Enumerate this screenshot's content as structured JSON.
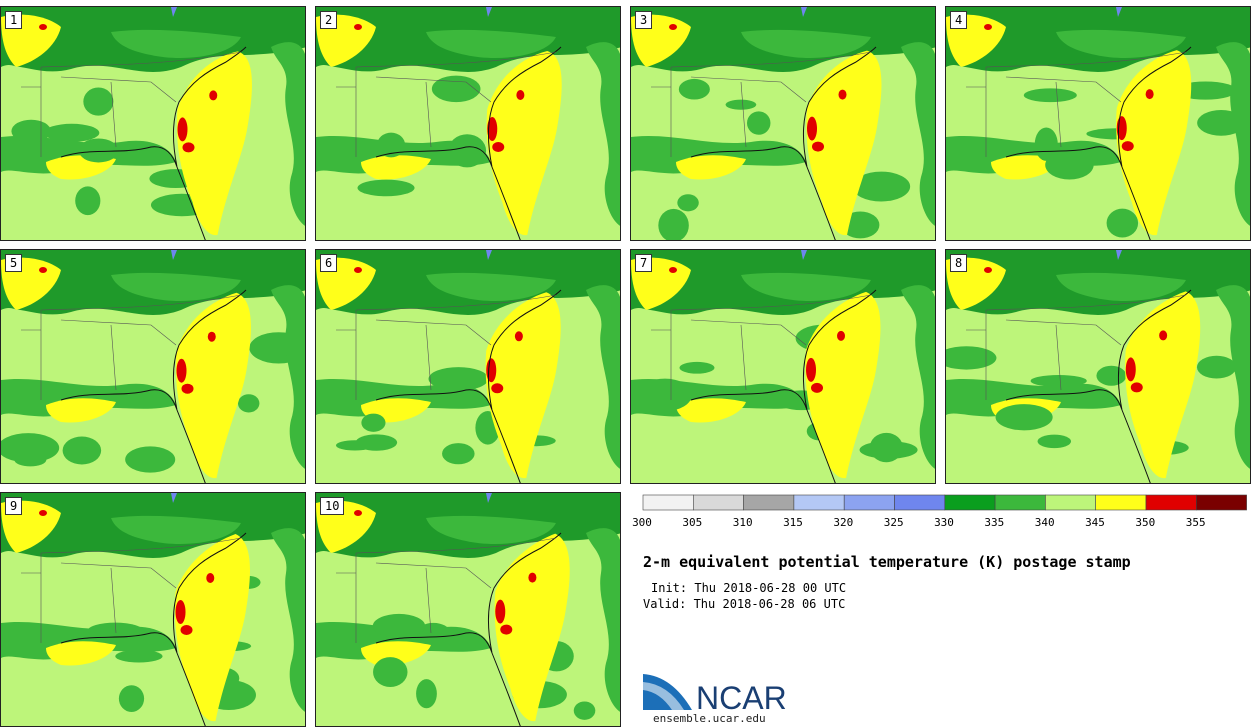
{
  "title": "2-m equivalent potential temperature (K) postage stamp",
  "init": "Init: Thu 2018-06-28 00 UTC",
  "valid": "Valid: Thu 2018-06-28 06 UTC",
  "logo_text": "NCAR",
  "url": "ensemble.ucar.edu",
  "panels": [
    "1",
    "2",
    "3",
    "4",
    "5",
    "6",
    "7",
    "8",
    "9",
    "10"
  ],
  "colorbar": {
    "ticks": [
      "300",
      "305",
      "310",
      "315",
      "320",
      "325",
      "330",
      "335",
      "340",
      "345",
      "350",
      "355"
    ],
    "colors": [
      "#f2f2f2",
      "#d9d9d9",
      "#a6a6a6",
      "#b4c8f5",
      "#8ca3f0",
      "#6f86ee",
      "#0a9e1e",
      "#3cb83c",
      "#bdf57a",
      "#ffff1a",
      "#e00000",
      "#7a0000"
    ]
  },
  "colors": {
    "dark_green": "#1f9a2a",
    "mid_green": "#3cb83c",
    "light_green": "#bdf57a",
    "yellow": "#ffff1a",
    "red": "#e00000",
    "blue": "#6f86ee"
  }
}
